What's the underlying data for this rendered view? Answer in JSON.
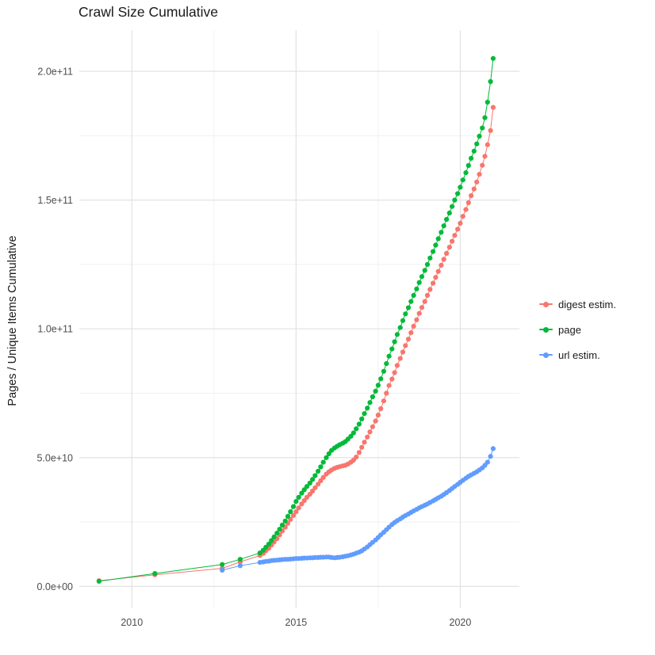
{
  "chart_data": {
    "type": "line",
    "title": "Crawl Size Cumulative",
    "xlabel": "",
    "ylabel": "Pages / Unique Items Cumulative",
    "unit_note": "point y-values are in billions (1e9); y tick labels show absolute scientific notation",
    "xlim": [
      2008.4,
      2021.8
    ],
    "ylim_billions": [
      -8.5,
      216
    ],
    "x_ticks": [
      2010,
      2015,
      2020
    ],
    "x_tick_labels": [
      "2010",
      "2015",
      "2020"
    ],
    "x_minor_ticks": [
      2012.5,
      2017.5
    ],
    "y_ticks_billions": [
      0,
      50,
      100,
      150,
      200
    ],
    "y_tick_labels": [
      "0.0e+00",
      "5.0e+10",
      "1.0e+11",
      "1.5e+11",
      "2.0e+11"
    ],
    "y_minor_ticks_billions": [
      25,
      75,
      125,
      175
    ],
    "grid": true,
    "legend_position": "right",
    "series": [
      {
        "name": "digest estim.",
        "color": "#F8766D",
        "points": [
          [
            2009.0,
            2.2
          ],
          [
            2010.7,
            4.5
          ],
          [
            2012.75,
            7
          ],
          [
            2013.3,
            9.5
          ],
          [
            2013.9,
            12
          ],
          [
            2014.0,
            12.8
          ],
          [
            2014.08,
            13.8
          ],
          [
            2014.17,
            14.8
          ],
          [
            2014.25,
            16
          ],
          [
            2014.33,
            17.2
          ],
          [
            2014.42,
            18.5
          ],
          [
            2014.5,
            20
          ],
          [
            2014.58,
            21.5
          ],
          [
            2014.67,
            23
          ],
          [
            2014.75,
            24.5
          ],
          [
            2014.83,
            26
          ],
          [
            2014.92,
            27.5
          ],
          [
            2015.0,
            29
          ],
          [
            2015.08,
            30.5
          ],
          [
            2015.17,
            32
          ],
          [
            2015.25,
            33.3
          ],
          [
            2015.33,
            34.6
          ],
          [
            2015.42,
            35.8
          ],
          [
            2015.5,
            37
          ],
          [
            2015.58,
            38.3
          ],
          [
            2015.67,
            39.7
          ],
          [
            2015.75,
            41
          ],
          [
            2015.83,
            42.3
          ],
          [
            2015.92,
            43.6
          ],
          [
            2016.0,
            44.5
          ],
          [
            2016.08,
            45.2
          ],
          [
            2016.17,
            45.8
          ],
          [
            2016.25,
            46.2
          ],
          [
            2016.33,
            46.5
          ],
          [
            2016.42,
            46.8
          ],
          [
            2016.5,
            47
          ],
          [
            2016.58,
            47.5
          ],
          [
            2016.67,
            48.2
          ],
          [
            2016.75,
            49
          ],
          [
            2016.83,
            50.2
          ],
          [
            2016.92,
            52
          ],
          [
            2017.0,
            54
          ],
          [
            2017.08,
            56
          ],
          [
            2017.17,
            58
          ],
          [
            2017.25,
            60
          ],
          [
            2017.33,
            62
          ],
          [
            2017.42,
            64.2
          ],
          [
            2017.5,
            66.5
          ],
          [
            2017.58,
            69
          ],
          [
            2017.67,
            72
          ],
          [
            2017.75,
            75
          ],
          [
            2017.83,
            78
          ],
          [
            2017.92,
            80.5
          ],
          [
            2018.0,
            83
          ],
          [
            2018.08,
            85.8
          ],
          [
            2018.17,
            88.5
          ],
          [
            2018.25,
            91
          ],
          [
            2018.33,
            93.5
          ],
          [
            2018.42,
            96
          ],
          [
            2018.5,
            98.5
          ],
          [
            2018.58,
            101
          ],
          [
            2018.67,
            103.5
          ],
          [
            2018.75,
            106
          ],
          [
            2018.83,
            108.3
          ],
          [
            2018.92,
            110.6
          ],
          [
            2019.0,
            113
          ],
          [
            2019.08,
            115.3
          ],
          [
            2019.17,
            117.7
          ],
          [
            2019.25,
            120
          ],
          [
            2019.33,
            122.3
          ],
          [
            2019.42,
            124.7
          ],
          [
            2019.5,
            127
          ],
          [
            2019.58,
            129.3
          ],
          [
            2019.67,
            131.7
          ],
          [
            2019.75,
            134
          ],
          [
            2019.83,
            136.3
          ],
          [
            2019.92,
            138.7
          ],
          [
            2020.0,
            141
          ],
          [
            2020.08,
            143.7
          ],
          [
            2020.17,
            146.3
          ],
          [
            2020.25,
            149
          ],
          [
            2020.33,
            151.7
          ],
          [
            2020.42,
            154.3
          ],
          [
            2020.5,
            157
          ],
          [
            2020.58,
            160
          ],
          [
            2020.67,
            163.5
          ],
          [
            2020.75,
            167
          ],
          [
            2020.83,
            171.5
          ],
          [
            2020.92,
            177
          ],
          [
            2021.0,
            186
          ]
        ]
      },
      {
        "name": "page",
        "color": "#00BA38",
        "points": [
          [
            2009.0,
            2.0
          ],
          [
            2010.7,
            5
          ],
          [
            2012.75,
            8.5
          ],
          [
            2013.3,
            10.5
          ],
          [
            2013.9,
            13
          ],
          [
            2014.0,
            14
          ],
          [
            2014.08,
            15.2
          ],
          [
            2014.17,
            16.4
          ],
          [
            2014.25,
            17.8
          ],
          [
            2014.33,
            19.2
          ],
          [
            2014.42,
            20.7
          ],
          [
            2014.5,
            22.2
          ],
          [
            2014.58,
            23.8
          ],
          [
            2014.67,
            25.4
          ],
          [
            2014.75,
            27.2
          ],
          [
            2014.83,
            29
          ],
          [
            2014.92,
            31
          ],
          [
            2015.0,
            33
          ],
          [
            2015.08,
            34.6
          ],
          [
            2015.17,
            36.2
          ],
          [
            2015.25,
            37.5
          ],
          [
            2015.33,
            38.8
          ],
          [
            2015.42,
            40.1
          ],
          [
            2015.5,
            41.5
          ],
          [
            2015.58,
            43
          ],
          [
            2015.67,
            44.7
          ],
          [
            2015.75,
            46.4
          ],
          [
            2015.83,
            48.2
          ],
          [
            2015.92,
            50
          ],
          [
            2016.0,
            51.5
          ],
          [
            2016.08,
            52.8
          ],
          [
            2016.17,
            53.7
          ],
          [
            2016.25,
            54.4
          ],
          [
            2016.33,
            55
          ],
          [
            2016.42,
            55.6
          ],
          [
            2016.5,
            56.2
          ],
          [
            2016.58,
            57.2
          ],
          [
            2016.67,
            58.3
          ],
          [
            2016.75,
            59.6
          ],
          [
            2016.83,
            61.2
          ],
          [
            2016.92,
            63
          ],
          [
            2017.0,
            65
          ],
          [
            2017.08,
            67.1
          ],
          [
            2017.17,
            69.2
          ],
          [
            2017.25,
            71.4
          ],
          [
            2017.33,
            73.6
          ],
          [
            2017.42,
            75.8
          ],
          [
            2017.5,
            78.1
          ],
          [
            2017.58,
            80.6
          ],
          [
            2017.67,
            83.5
          ],
          [
            2017.75,
            86.5
          ],
          [
            2017.83,
            89.4
          ],
          [
            2017.92,
            92.2
          ],
          [
            2018.0,
            95
          ],
          [
            2018.08,
            97.8
          ],
          [
            2018.17,
            100.5
          ],
          [
            2018.25,
            103.2
          ],
          [
            2018.33,
            105.8
          ],
          [
            2018.42,
            108.2
          ],
          [
            2018.5,
            110.6
          ],
          [
            2018.58,
            113
          ],
          [
            2018.67,
            115.5
          ],
          [
            2018.75,
            118
          ],
          [
            2018.83,
            120.3
          ],
          [
            2018.92,
            122.7
          ],
          [
            2019.0,
            125
          ],
          [
            2019.08,
            127.5
          ],
          [
            2019.17,
            130
          ],
          [
            2019.25,
            132.5
          ],
          [
            2019.33,
            135
          ],
          [
            2019.42,
            137.5
          ],
          [
            2019.5,
            140
          ],
          [
            2019.58,
            142.5
          ],
          [
            2019.67,
            145
          ],
          [
            2019.75,
            147.5
          ],
          [
            2019.83,
            150
          ],
          [
            2019.92,
            152.5
          ],
          [
            2020.0,
            155
          ],
          [
            2020.08,
            157.8
          ],
          [
            2020.17,
            160.6
          ],
          [
            2020.25,
            163.4
          ],
          [
            2020.33,
            166.2
          ],
          [
            2020.42,
            169
          ],
          [
            2020.5,
            171.8
          ],
          [
            2020.58,
            174.8
          ],
          [
            2020.67,
            178
          ],
          [
            2020.75,
            182
          ],
          [
            2020.83,
            188
          ],
          [
            2020.92,
            196
          ],
          [
            2021.0,
            205
          ]
        ]
      },
      {
        "name": "url estim.",
        "color": "#619CFF",
        "points": [
          [
            2012.75,
            6.3
          ],
          [
            2013.3,
            8
          ],
          [
            2013.9,
            9.3
          ],
          [
            2014.0,
            9.5
          ],
          [
            2014.08,
            9.7
          ],
          [
            2014.17,
            9.8
          ],
          [
            2014.25,
            10
          ],
          [
            2014.33,
            10.1
          ],
          [
            2014.42,
            10.2
          ],
          [
            2014.5,
            10.3
          ],
          [
            2014.58,
            10.4
          ],
          [
            2014.67,
            10.5
          ],
          [
            2014.75,
            10.5
          ],
          [
            2014.83,
            10.6
          ],
          [
            2014.92,
            10.7
          ],
          [
            2015.0,
            10.8
          ],
          [
            2015.08,
            10.8
          ],
          [
            2015.17,
            10.9
          ],
          [
            2015.25,
            11
          ],
          [
            2015.33,
            11
          ],
          [
            2015.42,
            11.1
          ],
          [
            2015.5,
            11.1
          ],
          [
            2015.58,
            11.2
          ],
          [
            2015.67,
            11.2
          ],
          [
            2015.75,
            11.3
          ],
          [
            2015.83,
            11.3
          ],
          [
            2015.92,
            11.4
          ],
          [
            2016.0,
            11.4
          ],
          [
            2016.08,
            11.2
          ],
          [
            2016.17,
            11.1
          ],
          [
            2016.25,
            11.2
          ],
          [
            2016.33,
            11.3
          ],
          [
            2016.42,
            11.5
          ],
          [
            2016.5,
            11.7
          ],
          [
            2016.58,
            11.9
          ],
          [
            2016.67,
            12.2
          ],
          [
            2016.75,
            12.5
          ],
          [
            2016.83,
            12.9
          ],
          [
            2016.92,
            13.3
          ],
          [
            2017.0,
            13.8
          ],
          [
            2017.08,
            14.5
          ],
          [
            2017.17,
            15.3
          ],
          [
            2017.25,
            16.2
          ],
          [
            2017.33,
            17.1
          ],
          [
            2017.42,
            18
          ],
          [
            2017.5,
            19
          ],
          [
            2017.58,
            20
          ],
          [
            2017.67,
            21
          ],
          [
            2017.75,
            22
          ],
          [
            2017.83,
            23
          ],
          [
            2017.92,
            24
          ],
          [
            2018.0,
            24.8
          ],
          [
            2018.08,
            25.5
          ],
          [
            2018.17,
            26.2
          ],
          [
            2018.25,
            26.9
          ],
          [
            2018.33,
            27.5
          ],
          [
            2018.42,
            28.1
          ],
          [
            2018.5,
            28.7
          ],
          [
            2018.58,
            29.3
          ],
          [
            2018.67,
            29.9
          ],
          [
            2018.75,
            30.5
          ],
          [
            2018.83,
            31
          ],
          [
            2018.92,
            31.5
          ],
          [
            2019.0,
            32
          ],
          [
            2019.08,
            32.6
          ],
          [
            2019.17,
            33.2
          ],
          [
            2019.25,
            33.8
          ],
          [
            2019.33,
            34.4
          ],
          [
            2019.42,
            35
          ],
          [
            2019.5,
            35.7
          ],
          [
            2019.58,
            36.4
          ],
          [
            2019.67,
            37.2
          ],
          [
            2019.75,
            38
          ],
          [
            2019.83,
            38.8
          ],
          [
            2019.92,
            39.6
          ],
          [
            2020.0,
            40.4
          ],
          [
            2020.08,
            41.2
          ],
          [
            2020.17,
            42
          ],
          [
            2020.25,
            42.7
          ],
          [
            2020.33,
            43.3
          ],
          [
            2020.42,
            43.9
          ],
          [
            2020.5,
            44.5
          ],
          [
            2020.58,
            45.2
          ],
          [
            2020.67,
            46
          ],
          [
            2020.75,
            47
          ],
          [
            2020.83,
            48.2
          ],
          [
            2020.92,
            50.5
          ],
          [
            2021.0,
            53.5
          ]
        ]
      }
    ]
  }
}
